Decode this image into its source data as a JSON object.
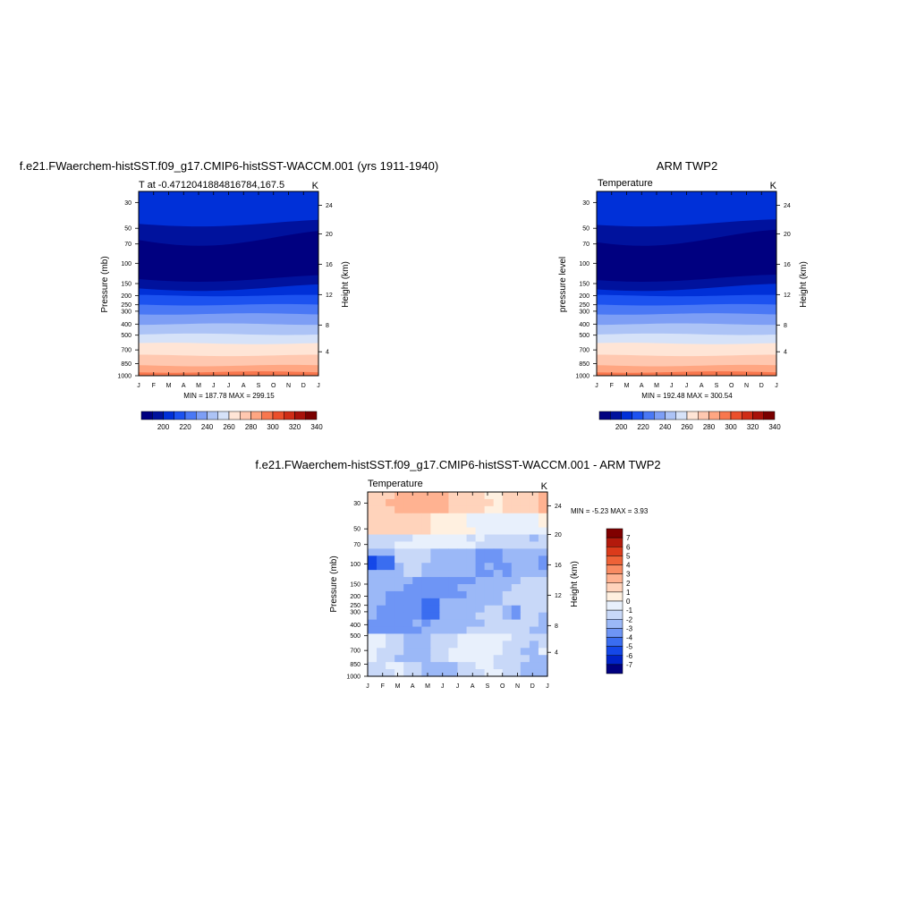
{
  "panels": [
    {
      "title": "f.e21.FWaerchem-histSST.f09_g17.CMIP6-histSST-WACCM.001 (yrs 1911-1940)",
      "subtitle_left": "T at -0.47120418848167​84,167.5",
      "subtitle_right": "K",
      "ylabel_left": "Pressure (mb)",
      "ylabel_right": "Height (km)",
      "stats": "MIN = 187.78 MAX = 299.15"
    },
    {
      "title": "ARM TWP2",
      "subtitle_left": "Temperature",
      "subtitle_right": "K",
      "ylabel_left": "pressure level",
      "ylabel_right": "Height (km)",
      "stats": "MIN = 192.48 MAX = 300.54"
    },
    {
      "title": "f.e21.FWaerchem-histSST.f09_g17.CMIP6-histSST-WACCM.001 - ARM TWP2",
      "subtitle_left": "Temperature",
      "subtitle_right": "K",
      "ylabel_left": "Pressure (mb)",
      "ylabel_right": "Height (km)",
      "stats": "MIN =  -5.23 MAX =   3.93"
    }
  ],
  "colors": {
    "abs_palette": [
      "#000080",
      "#00129d",
      "#0030d8",
      "#1c52f0",
      "#4a78f5",
      "#7d9ef5",
      "#acc3f6",
      "#d6e2f8",
      "#ffe5d6",
      "#ffc8b0",
      "#ffa682",
      "#f8774e",
      "#eb4f2b",
      "#cf2d16",
      "#a8120a",
      "#7a0000"
    ],
    "diff_palette": [
      "#000080",
      "#0022c8",
      "#1447e8",
      "#3a6df0",
      "#6e95f5",
      "#9bb8f7",
      "#c8d8f8",
      "#e8f0fc",
      "#fff0e0",
      "#ffd3bb",
      "#ffb291",
      "#f98b62",
      "#ee6237",
      "#db3b1b",
      "#b31a0c",
      "#800000"
    ]
  },
  "chart_data": [
    {
      "type": "heatmap",
      "title": "f.e21.FWaerchem-histSST.f09_g17.CMIP6-histSST-WACCM.001 (yrs 1911-1940)",
      "x": [
        "J",
        "F",
        "M",
        "A",
        "M",
        "J",
        "J",
        "A",
        "S",
        "O",
        "N",
        "D",
        "J"
      ],
      "y_pressure_ticks": [
        "30",
        "50",
        "70",
        "100",
        "150",
        "200",
        "250",
        "300",
        "400",
        "500",
        "700",
        "850",
        "1000"
      ],
      "y_height_ticks": [
        "24",
        "20",
        "16",
        "12",
        "8",
        "4"
      ],
      "xlabel": "",
      "ylabel": "Pressure (mb)",
      "y2label": "Height (km)",
      "units": "K",
      "min": 187.78,
      "max": 299.15,
      "colorbar_labels": [
        "200",
        "220",
        "240",
        "260",
        "280",
        "300",
        "320",
        "340"
      ]
    },
    {
      "type": "heatmap",
      "title": "ARM TWP2",
      "x": [
        "J",
        "F",
        "M",
        "A",
        "M",
        "J",
        "J",
        "A",
        "S",
        "O",
        "N",
        "D",
        "J"
      ],
      "y_pressure_ticks": [
        "30",
        "50",
        "70",
        "100",
        "150",
        "200",
        "250",
        "300",
        "400",
        "500",
        "700",
        "850",
        "1000"
      ],
      "y_height_ticks": [
        "24",
        "20",
        "16",
        "12",
        "8",
        "4"
      ],
      "xlabel": "",
      "ylabel": "pressure level",
      "y2label": "Height (km)",
      "units": "K",
      "min": 192.48,
      "max": 300.54,
      "colorbar_labels": [
        "200",
        "220",
        "240",
        "260",
        "280",
        "300",
        "320",
        "340"
      ]
    },
    {
      "type": "heatmap",
      "title": "f.e21.FWaerchem-histSST.f09_g17.CMIP6-histSST-WACCM.001 - ARM TWP2",
      "x": [
        "J",
        "F",
        "M",
        "A",
        "M",
        "J",
        "J",
        "A",
        "S",
        "O",
        "N",
        "D",
        "J"
      ],
      "y_pressure_ticks": [
        "30",
        "50",
        "70",
        "100",
        "150",
        "200",
        "250",
        "300",
        "400",
        "500",
        "700",
        "850",
        "1000"
      ],
      "y_height_ticks": [
        "24",
        "20",
        "16",
        "12",
        "8",
        "4"
      ],
      "xlabel": "",
      "ylabel": "Pressure (mb)",
      "y2label": "Height (km)",
      "units": "K",
      "min": -5.23,
      "max": 3.93,
      "colorbar_labels": [
        "7",
        "6",
        "5",
        "4",
        "3",
        "2",
        "1",
        "0",
        "-1",
        "-2",
        "-3",
        "-4",
        "-5",
        "-6",
        "-7"
      ]
    }
  ]
}
